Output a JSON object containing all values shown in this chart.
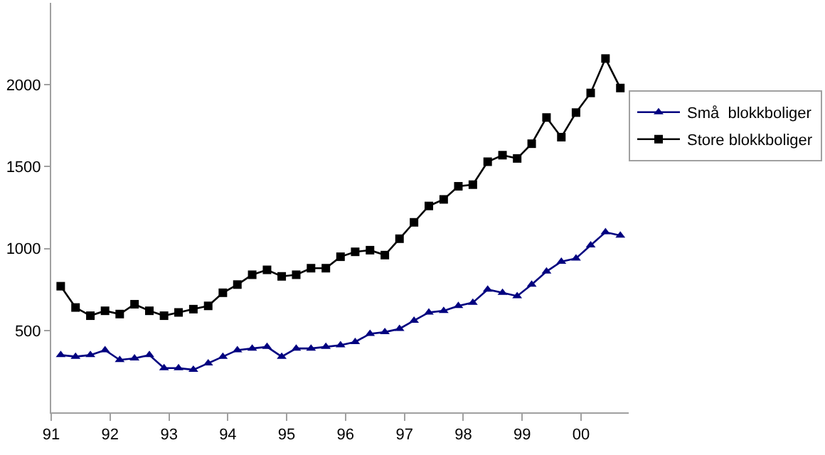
{
  "chart_data": {
    "type": "line",
    "x": [
      "1991-03-01",
      "1991-06-01",
      "1991-09-01",
      "1991-12-01",
      "1992-03-01",
      "1992-06-01",
      "1992-09-01",
      "1992-12-01",
      "1993-03-01",
      "1993-06-01",
      "1993-09-01",
      "1993-12-01",
      "1994-03-01",
      "1994-06-01",
      "1994-09-01",
      "1994-12-01",
      "1995-03-01",
      "1995-06-01",
      "1995-09-01",
      "1995-12-01",
      "1996-03-01",
      "1996-06-01",
      "1996-09-01",
      "1996-12-01",
      "1997-03-01",
      "1997-06-01",
      "1997-09-01",
      "1997-12-01",
      "1998-03-01",
      "1998-06-01",
      "1998-09-01",
      "1998-12-01",
      "1999-03-01",
      "1999-06-01",
      "1999-09-01",
      "1999-12-01",
      "2000-03-01",
      "2000-06-01",
      "2000-09-01"
    ],
    "series": [
      {
        "name": "Små  blokkboliger",
        "color": "#000080",
        "marker": "triangle",
        "values": [
          350,
          340,
          350,
          380,
          320,
          330,
          350,
          270,
          270,
          260,
          300,
          340,
          380,
          390,
          400,
          340,
          390,
          390,
          400,
          410,
          430,
          480,
          490,
          510,
          560,
          610,
          620,
          650,
          670,
          750,
          730,
          710,
          780,
          860,
          920,
          940,
          1020,
          1100,
          1080
        ]
      },
      {
        "name": "Store blokkboliger",
        "color": "#000000",
        "marker": "square",
        "values": [
          770,
          640,
          590,
          620,
          600,
          660,
          620,
          590,
          610,
          630,
          650,
          730,
          780,
          840,
          870,
          830,
          840,
          880,
          880,
          950,
          980,
          990,
          960,
          1060,
          1160,
          1260,
          1300,
          1380,
          1390,
          1530,
          1570,
          1550,
          1640,
          1800,
          1680,
          1830,
          1950,
          2160,
          1980
        ]
      }
    ],
    "xlim": [
      "1991-01-01",
      "2000-10-23"
    ],
    "xticks": [
      {
        "value": "1991",
        "label": "91"
      },
      {
        "value": "1992",
        "label": "92"
      },
      {
        "value": "1993",
        "label": "93"
      },
      {
        "value": "1994",
        "label": "94"
      },
      {
        "value": "1995",
        "label": "95"
      },
      {
        "value": "1996",
        "label": "96"
      },
      {
        "value": "1997",
        "label": "97"
      },
      {
        "value": "1998",
        "label": "98"
      },
      {
        "value": "1999",
        "label": "99"
      },
      {
        "value": "2000",
        "label": "00"
      }
    ],
    "ylim": [
      0,
      2500
    ],
    "yticks": [
      500,
      1000,
      1500,
      2000
    ],
    "legend": "right",
    "line_style": "solid"
  }
}
